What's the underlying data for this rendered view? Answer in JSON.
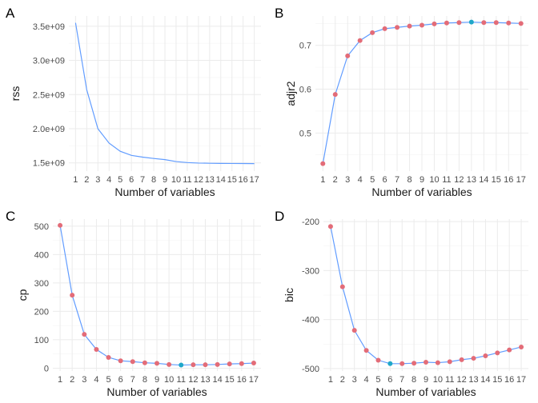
{
  "chart_data": [
    {
      "id": "A",
      "panel_label": "A",
      "type": "line",
      "xlabel": "Number of variables",
      "ylabel": "rss",
      "x": [
        1,
        2,
        3,
        4,
        5,
        6,
        7,
        8,
        9,
        10,
        11,
        12,
        13,
        14,
        15,
        16,
        17
      ],
      "values": [
        3550000000,
        2570000000,
        2000000000,
        1790000000,
        1670000000,
        1610000000,
        1585000000,
        1565000000,
        1548000000,
        1520000000,
        1505000000,
        1498000000,
        1495000000,
        1493000000,
        1492000000,
        1491000000,
        1490000000
      ],
      "ylim": [
        1380000000,
        3650000000
      ],
      "yticks": [
        1500000000,
        2000000000,
        2500000000,
        3000000000,
        3500000000
      ],
      "ytick_labels": [
        "1.5e+09",
        "2.0e+09",
        "2.5e+09",
        "3.0e+09",
        "3.5e+09"
      ],
      "points": false,
      "highlight_index": null,
      "line_color": "#619CFF",
      "grid": true
    },
    {
      "id": "B",
      "panel_label": "B",
      "type": "line",
      "xlabel": "Number of variables",
      "ylabel": "adjr2",
      "x": [
        1,
        2,
        3,
        4,
        5,
        6,
        7,
        8,
        9,
        10,
        11,
        12,
        13,
        14,
        15,
        16,
        17
      ],
      "values": [
        0.43,
        0.588,
        0.676,
        0.711,
        0.729,
        0.738,
        0.741,
        0.744,
        0.746,
        0.749,
        0.751,
        0.752,
        0.753,
        0.752,
        0.752,
        0.751,
        0.75
      ],
      "ylim": [
        0.413,
        0.767
      ],
      "yticks": [
        0.5,
        0.6,
        0.7
      ],
      "ytick_labels": [
        "0.5",
        "0.6",
        "0.7"
      ],
      "points": true,
      "highlight_index": 12,
      "line_color": "#619CFF",
      "point_color": "#E36C78",
      "highlight_color": "#1FA7C9",
      "grid": true
    },
    {
      "id": "C",
      "panel_label": "C",
      "type": "line",
      "xlabel": "Number of variables",
      "ylabel": "cp",
      "x": [
        1,
        2,
        3,
        4,
        5,
        6,
        7,
        8,
        9,
        10,
        11,
        12,
        13,
        14,
        15,
        16,
        17
      ],
      "values": [
        503,
        257,
        119,
        66,
        38,
        26,
        23,
        19,
        17,
        13,
        11,
        12,
        12,
        13,
        15,
        16,
        18
      ],
      "ylim": [
        -10,
        525
      ],
      "yticks": [
        0,
        100,
        200,
        300,
        400,
        500
      ],
      "ytick_labels": [
        "0",
        "100",
        "200",
        "300",
        "400",
        "500"
      ],
      "points": true,
      "highlight_index": 10,
      "line_color": "#619CFF",
      "point_color": "#E36C78",
      "highlight_color": "#1FA7C9",
      "grid": true
    },
    {
      "id": "D",
      "panel_label": "D",
      "type": "line",
      "xlabel": "Number of variables",
      "ylabel": "bic",
      "x": [
        1,
        2,
        3,
        4,
        5,
        6,
        7,
        8,
        9,
        10,
        11,
        12,
        13,
        14,
        15,
        16,
        17
      ],
      "values": [
        -210,
        -333,
        -422,
        -463,
        -483,
        -490,
        -490,
        -489,
        -487,
        -488,
        -486,
        -482,
        -479,
        -474,
        -468,
        -462,
        -456
      ],
      "ylim": [
        -505,
        -195
      ],
      "yticks": [
        -500,
        -400,
        -300,
        -200
      ],
      "ytick_labels": [
        "-500",
        "-400",
        "-300",
        "-200"
      ],
      "points": true,
      "highlight_index": 5,
      "line_color": "#619CFF",
      "point_color": "#E36C78",
      "highlight_color": "#1FA7C9",
      "grid": true
    }
  ]
}
